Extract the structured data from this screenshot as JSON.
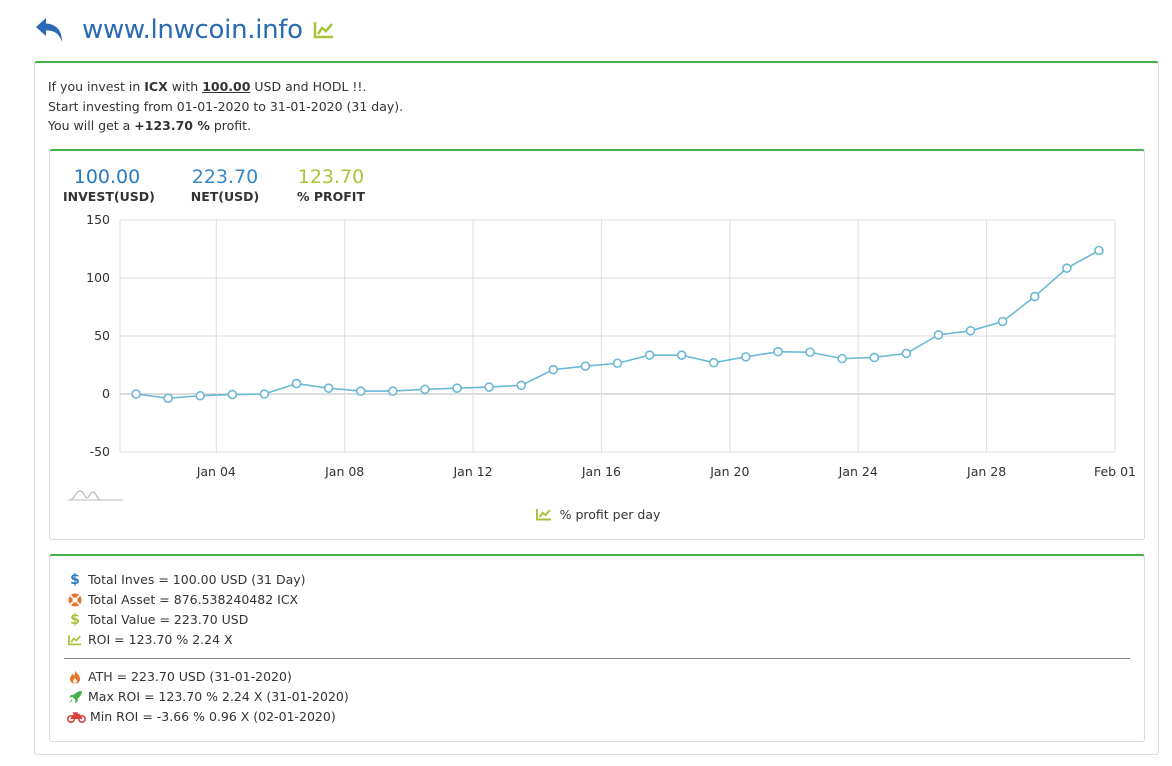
{
  "header": {
    "site_title": "www.lnwcoin.info"
  },
  "summary": {
    "line1_prefix": "If you invest in ",
    "coin": "ICX",
    "line1_mid": " with ",
    "amount": "100.00",
    "line1_suffix": " USD and HODL !!.",
    "line2": "Start investing from 01-01-2020 to 31-01-2020 (31 day).",
    "line3_prefix": "You will get a ",
    "profit": "+123.70 %",
    "line3_suffix": " profit."
  },
  "stats": {
    "invest": {
      "value": "100.00",
      "label": "INVEST(USD)"
    },
    "net": {
      "value": "223.70",
      "label": "NET(USD)"
    },
    "profit": {
      "value": "123.70",
      "label": "% PROFIT"
    }
  },
  "legend": {
    "label": "% profit per day"
  },
  "info": {
    "total_invest": "Total Inves = 100.00 USD (31 Day)",
    "total_asset": "Total Asset = 876.538240482 ICX",
    "total_value": "Total Value = 223.70 USD",
    "roi": "ROI = 123.70 % 2.24 X",
    "ath": "ATH = 223.70 USD (31-01-2020)",
    "max_roi": "Max ROI = 123.70 % 2.24 X (31-01-2020)",
    "min_roi": "Min ROI = -3.66 % 0.96 X (02-01-2020)"
  },
  "colors": {
    "accent": "#46b04a",
    "link": "#2a6ab3",
    "line": "#6bb8d4",
    "profit": "#a8c43a"
  },
  "chart_data": {
    "type": "line",
    "title": "",
    "xlabel": "",
    "ylabel": "",
    "ylim": [
      -50,
      150
    ],
    "yticks": [
      150,
      100,
      50,
      0,
      -50
    ],
    "x_start_day": 0,
    "x_end_day": 31,
    "xticks": [
      {
        "day": 3,
        "label": "Jan 04"
      },
      {
        "day": 7,
        "label": "Jan 08"
      },
      {
        "day": 11,
        "label": "Jan 12"
      },
      {
        "day": 15,
        "label": "Jan 16"
      },
      {
        "day": 19,
        "label": "Jan 20"
      },
      {
        "day": 23,
        "label": "Jan 24"
      },
      {
        "day": 27,
        "label": "Jan 28"
      },
      {
        "day": 31,
        "label": "Feb 01"
      }
    ],
    "series": [
      {
        "name": "% profit per day",
        "days": [
          0.5,
          1.5,
          2.5,
          3.5,
          4.5,
          5.5,
          6.5,
          7.5,
          8.5,
          9.5,
          10.5,
          11.5,
          12.5,
          13.5,
          14.5,
          15.5,
          16.5,
          17.5,
          18.5,
          19.5,
          20.5,
          21.5,
          22.5,
          23.5,
          24.5,
          25.5,
          26.5,
          27.5,
          28.5,
          29.5,
          30.5
        ],
        "values": [
          0,
          -3.66,
          -1.5,
          -0.5,
          0,
          9,
          5,
          2.5,
          2.5,
          4,
          5,
          6,
          7.5,
          21,
          24,
          26.5,
          33.5,
          33.5,
          27,
          32,
          36.5,
          36,
          30.5,
          31.5,
          35,
          51,
          54.5,
          62.5,
          84,
          108.5,
          123.7
        ]
      }
    ]
  }
}
